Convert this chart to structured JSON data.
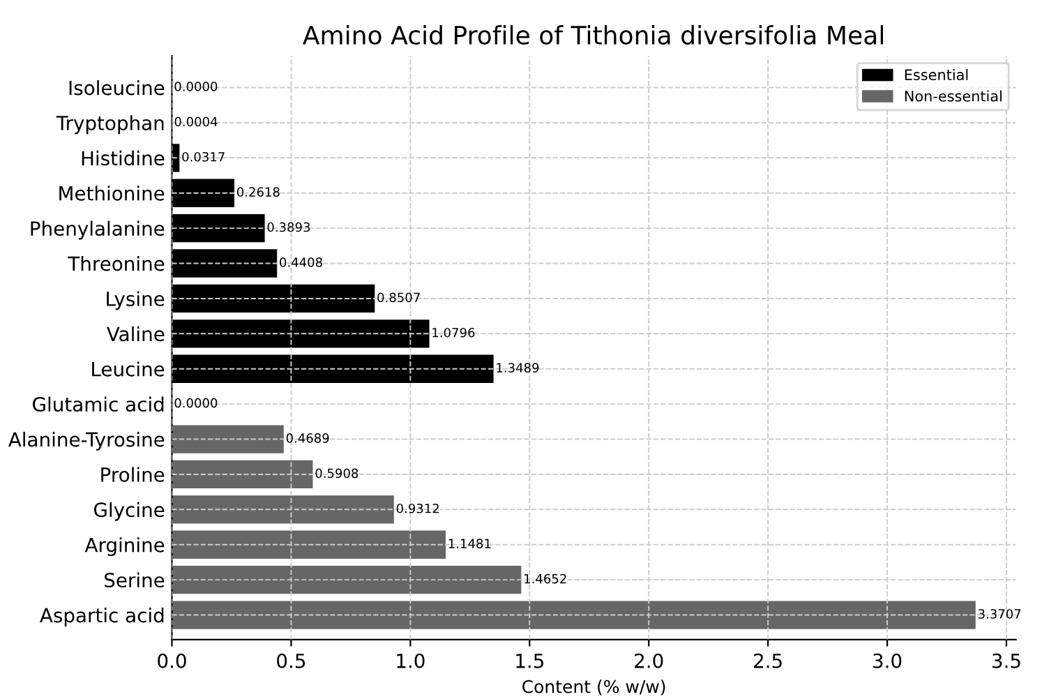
{
  "chart_data": {
    "type": "bar",
    "orientation": "horizontal",
    "title": "Amino Acid Profile of Tithonia diversifolia Meal",
    "xlabel": "Content (% w/w)",
    "categories": [
      "Isoleucine",
      "Tryptophan",
      "Histidine",
      "Methionine",
      "Phenylalanine",
      "Threonine",
      "Lysine",
      "Valine",
      "Leucine",
      "Glutamic acid",
      "Alanine-Tyrosine",
      "Proline",
      "Glycine",
      "Arginine",
      "Serine",
      "Aspartic acid"
    ],
    "series": [
      {
        "name": "Essential",
        "color": "#000000",
        "values": [
          0.0,
          0.0004,
          0.0317,
          0.2618,
          0.3893,
          0.4408,
          0.8507,
          1.0796,
          1.3489,
          null,
          null,
          null,
          null,
          null,
          null,
          null
        ],
        "value_labels": [
          "0.0000",
          "0.0004",
          "0.0317",
          "0.2618",
          "0.3893",
          "0.4408",
          "0.8507",
          "1.0796",
          "1.3489",
          null,
          null,
          null,
          null,
          null,
          null,
          null
        ]
      },
      {
        "name": "Non-essential",
        "color": "#666666",
        "values": [
          null,
          null,
          null,
          null,
          null,
          null,
          null,
          null,
          null,
          0.0,
          0.4689,
          0.5908,
          0.9312,
          1.1481,
          1.4652,
          3.3707
        ],
        "value_labels": [
          null,
          null,
          null,
          null,
          null,
          null,
          null,
          null,
          null,
          "0.0000",
          "0.4689",
          "0.5908",
          "0.9312",
          "1.1481",
          "1.4652",
          "3.3707"
        ]
      }
    ],
    "xlim": [
      0,
      3.54
    ],
    "xticks": [
      {
        "value": 0,
        "label": "0.0"
      },
      0.5,
      {
        "value": 1,
        "label": "1.0"
      },
      1.5,
      {
        "value": 2,
        "label": "2.0"
      },
      2.5,
      {
        "value": 3,
        "label": "3.0"
      },
      3.5
    ],
    "grid": true,
    "line_style": "dashed",
    "legend": "top right"
  }
}
